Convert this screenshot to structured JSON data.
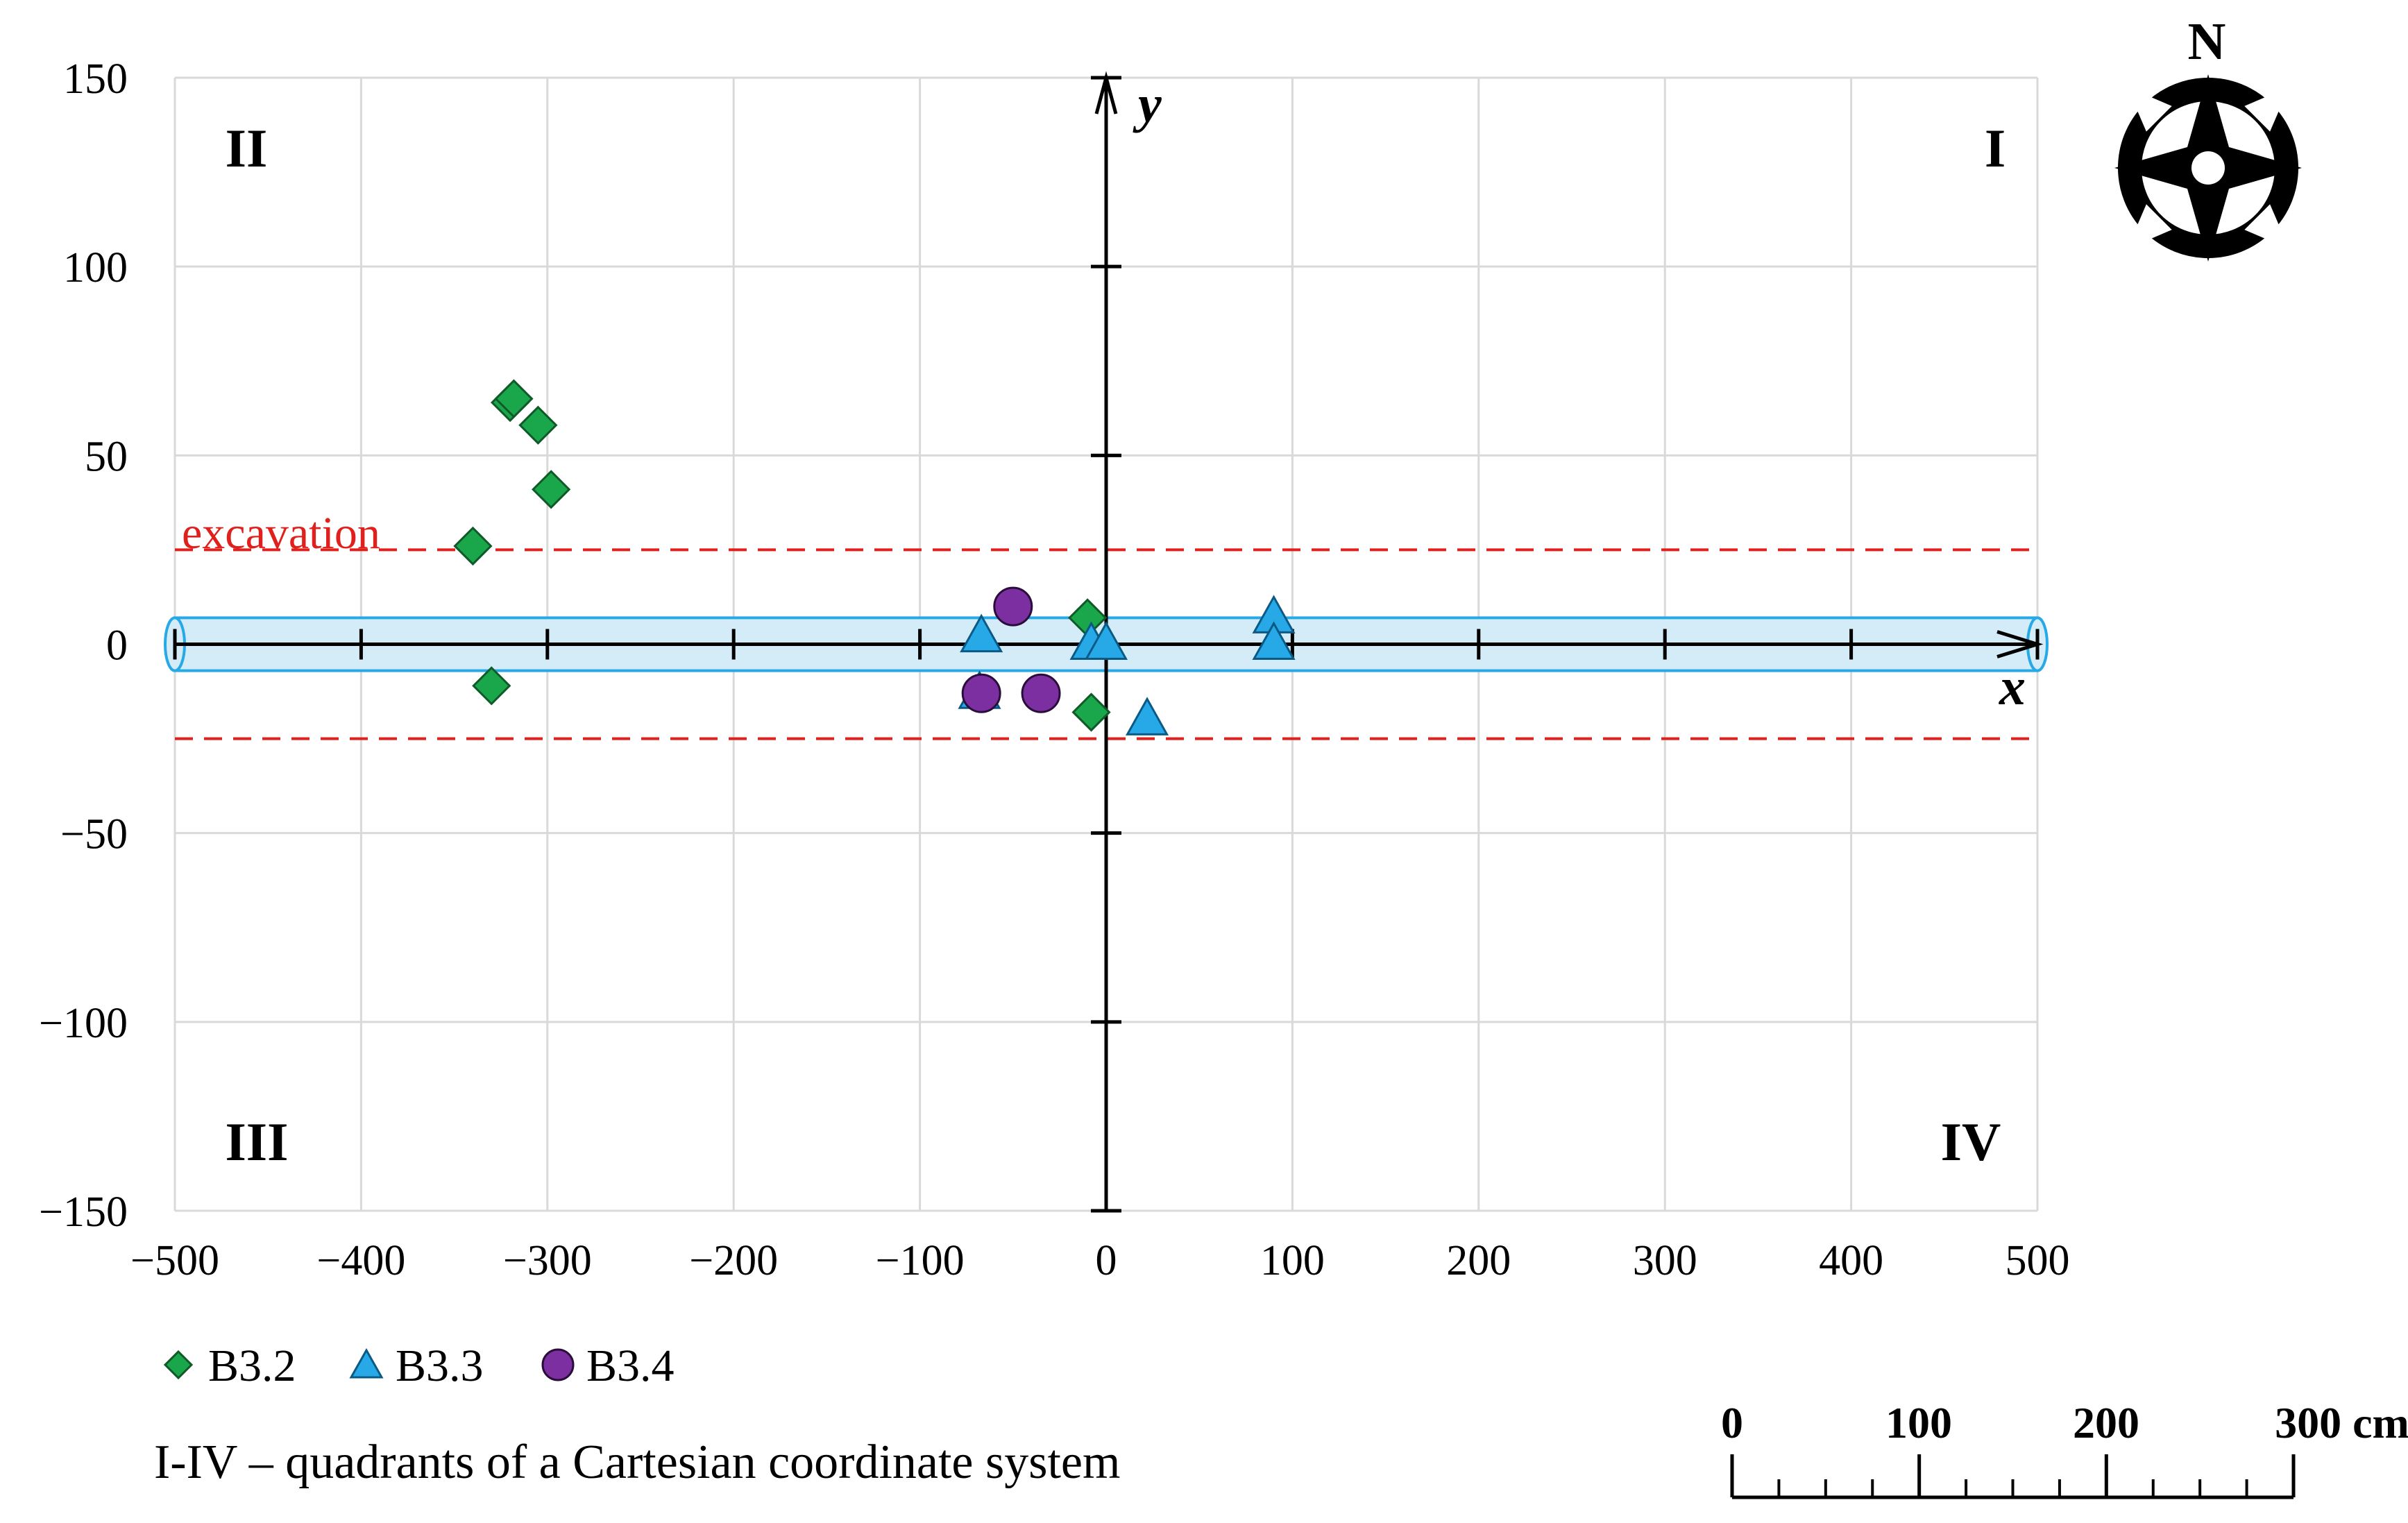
{
  "chart_data": {
    "type": "scatter",
    "title": "",
    "xlabel": "x",
    "ylabel": "y",
    "xlim": [
      -500,
      500
    ],
    "ylim": [
      -150,
      150
    ],
    "x_ticks": [
      -500,
      -400,
      -300,
      -200,
      -100,
      0,
      100,
      200,
      300,
      400,
      500
    ],
    "y_ticks": [
      -150,
      -100,
      -50,
      0,
      50,
      100,
      150
    ],
    "x_tick_labels": [
      "−500",
      "−400",
      "−300",
      "−200",
      "−100",
      "0",
      "100",
      "200",
      "300",
      "400",
      "500"
    ],
    "y_tick_labels": [
      "−150",
      "−100",
      "−50",
      "0",
      "50",
      "100",
      "150"
    ],
    "grid": true,
    "series": [
      {
        "name": "B3.2",
        "marker": "diamond",
        "color": "#1aa64b",
        "points": [
          [
            -320,
            64
          ],
          [
            -318,
            65
          ],
          [
            -305,
            58
          ],
          [
            -298,
            41
          ],
          [
            -340,
            26
          ],
          [
            -330,
            -11
          ],
          [
            -10,
            7
          ],
          [
            -8,
            -18
          ]
        ]
      },
      {
        "name": "B3.3",
        "marker": "triangle",
        "color": "#27a9e8",
        "points": [
          [
            -67,
            2
          ],
          [
            -68,
            -13
          ],
          [
            -8,
            0
          ],
          [
            0,
            0
          ],
          [
            22,
            -20
          ],
          [
            90,
            7
          ],
          [
            90,
            0
          ]
        ]
      },
      {
        "name": "B3.4",
        "marker": "circle",
        "color": "#7b2fa0",
        "points": [
          [
            -50,
            10
          ],
          [
            -67,
            -13
          ],
          [
            -35,
            -13
          ]
        ]
      }
    ],
    "excavation": {
      "label": "excavation",
      "y_values": [
        25,
        -25
      ],
      "color": "#e0201c"
    },
    "pipe": {
      "half_width": 7,
      "fill": "#d4ecf8",
      "stroke": "#27a9e8"
    },
    "quadrants": {
      "I": "I",
      "II": "II",
      "III": "III",
      "IV": "IV"
    },
    "legend_position": "bottom-left"
  },
  "caption": "I-IV – quadrants of a Cartesian coordinate system",
  "north_label": "N",
  "scale_bar": {
    "labels": [
      "0",
      "100",
      "200",
      "300 cm"
    ],
    "max_value": 300
  },
  "colors": {
    "grid": "#d9d9d9",
    "axis": "#000000"
  }
}
